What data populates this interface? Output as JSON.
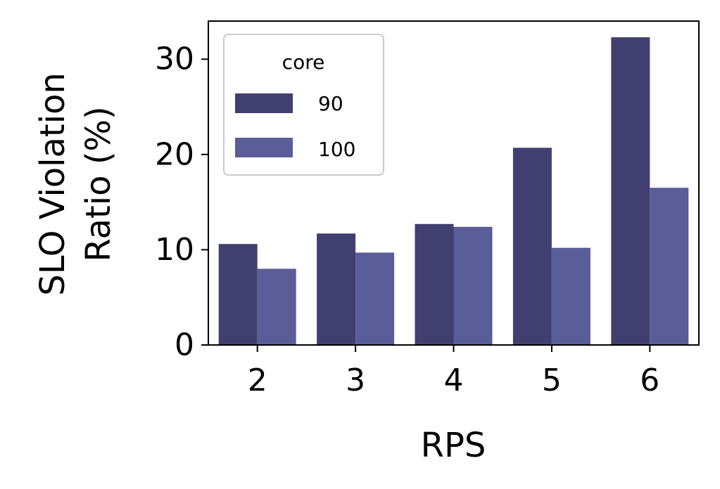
{
  "chart_data": {
    "type": "bar",
    "title": "",
    "xlabel": "RPS",
    "ylabel_lines": [
      "SLO Violation",
      "Ratio (%)"
    ],
    "categories": [
      "2",
      "3",
      "4",
      "5",
      "6"
    ],
    "series": [
      {
        "name": "90",
        "values": [
          10.6,
          11.7,
          12.7,
          20.7,
          32.3
        ],
        "color": "#403f6f"
      },
      {
        "name": "100",
        "values": [
          8.0,
          9.7,
          12.4,
          10.2,
          16.5
        ],
        "color": "#5b5d98"
      }
    ],
    "legend": {
      "title": "core",
      "placement": "upper-left"
    },
    "ylim": [
      0,
      34
    ],
    "yticks": [
      0,
      10,
      20,
      30
    ],
    "ytick_labels": [
      "0",
      "10",
      "20",
      "30"
    ],
    "grid": false
  }
}
